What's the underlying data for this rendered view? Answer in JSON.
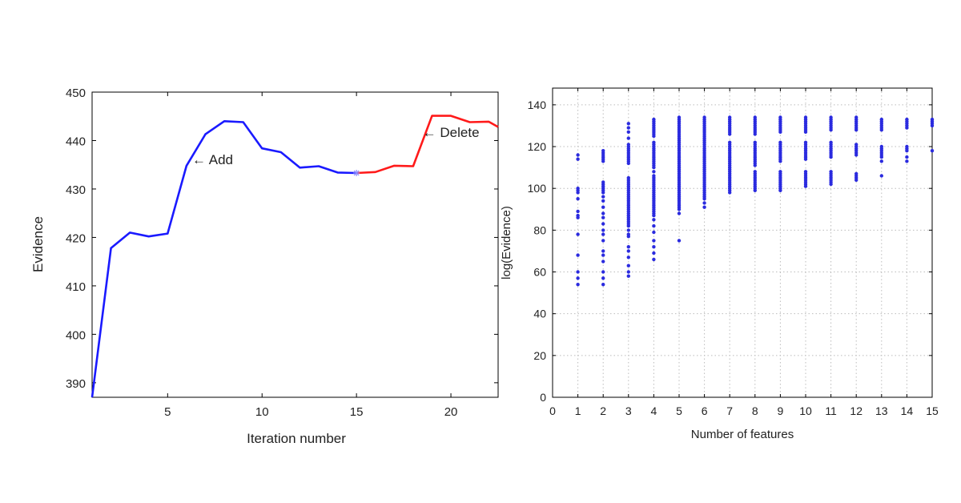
{
  "chart_data": [
    {
      "type": "line",
      "xlabel": "Iteration number",
      "ylabel": "Evidence",
      "xlim": [
        1,
        22.5
      ],
      "ylim": [
        387,
        450
      ],
      "xticks": [
        5,
        10,
        15,
        20
      ],
      "yticks": [
        390,
        400,
        410,
        420,
        430,
        440,
        450
      ],
      "grid": false,
      "series": [
        {
          "color": "#1a1aff",
          "x": [
            1,
            2,
            3,
            4,
            5,
            6,
            7,
            8,
            9,
            10,
            11,
            12,
            13,
            14,
            15
          ],
          "y": [
            387,
            417.8,
            421,
            420.2,
            420.8,
            434.8,
            441.3,
            444,
            443.8,
            438.4,
            437.6,
            434.4,
            434.7,
            433.4,
            433.3
          ]
        },
        {
          "color": "#ff1a1a",
          "x": [
            15,
            16,
            17,
            18,
            19,
            20,
            21,
            22,
            22.5
          ],
          "y": [
            433.3,
            433.5,
            434.8,
            434.7,
            445.1,
            445.1,
            443.8,
            443.9,
            442.8
          ]
        }
      ],
      "marker": {
        "x": 15,
        "y": 433.3,
        "symbol": "*"
      },
      "annotations": [
        {
          "text": "← Add",
          "x": 6.3,
          "y": 435.1
        },
        {
          "text": "← Delete",
          "x": 18.5,
          "y": 440.7
        }
      ]
    },
    {
      "type": "scatter",
      "xlabel": "Number of features",
      "ylabel": "log(Evidence)",
      "xlim": [
        0,
        15
      ],
      "ylim": [
        0,
        148
      ],
      "xticks": [
        0,
        1,
        2,
        3,
        4,
        5,
        6,
        7,
        8,
        9,
        10,
        11,
        12,
        13,
        14,
        15
      ],
      "yticks": [
        0,
        20,
        40,
        60,
        80,
        100,
        120,
        140
      ],
      "grid": true,
      "color": "#2b2bdf",
      "groups": [
        {
          "x": 1,
          "y": [
            116,
            114,
            100,
            99,
            98,
            95,
            89,
            87,
            86,
            78,
            68,
            60,
            57,
            54
          ]
        },
        {
          "x": 2,
          "y": [
            118,
            117,
            116,
            115,
            114,
            113,
            103,
            102,
            101,
            100,
            99,
            98,
            96,
            94,
            91,
            88,
            86,
            83,
            80,
            78,
            75,
            70,
            68,
            65,
            60,
            57,
            54
          ]
        },
        {
          "x": 3,
          "y": [
            131,
            129,
            127,
            124,
            121,
            120,
            119,
            118,
            117,
            116,
            115,
            114,
            113,
            112,
            105,
            104,
            103,
            102,
            101,
            100,
            99,
            98,
            97,
            96,
            95,
            94,
            93,
            92,
            91,
            90,
            89,
            88,
            87,
            86,
            85,
            84,
            83,
            82,
            80,
            78,
            77,
            72,
            70,
            67,
            63,
            60,
            58
          ]
        },
        {
          "x": 4,
          "y": [
            133,
            132,
            131,
            130,
            129,
            128,
            127,
            126,
            125,
            122,
            121,
            120,
            119,
            118,
            117,
            116,
            115,
            114,
            113,
            112,
            111,
            110,
            108,
            106,
            105,
            104,
            103,
            102,
            101,
            100,
            99,
            98,
            97,
            96,
            95,
            94,
            93,
            92,
            91,
            90,
            89,
            88,
            87,
            85,
            82,
            79,
            75,
            72,
            69,
            66
          ]
        },
        {
          "x": 5,
          "y": [
            134,
            133,
            132,
            131,
            130,
            129,
            128,
            127,
            126,
            125,
            124,
            123,
            122,
            121,
            120,
            119,
            118,
            117,
            116,
            115,
            114,
            113,
            112,
            111,
            110,
            109,
            108,
            107,
            106,
            105,
            104,
            103,
            102,
            101,
            100,
            99,
            98,
            97,
            96,
            95,
            94,
            93,
            92,
            91,
            90,
            88,
            75
          ]
        },
        {
          "x": 6,
          "y": [
            134,
            133,
            132,
            131,
            130,
            129,
            128,
            127,
            126,
            125,
            124,
            123,
            122,
            121,
            120,
            119,
            118,
            117,
            116,
            115,
            114,
            113,
            112,
            111,
            110,
            109,
            108,
            107,
            106,
            105,
            104,
            103,
            102,
            101,
            100,
            99,
            98,
            97,
            96,
            95,
            93,
            91
          ]
        },
        {
          "x": 7,
          "y": [
            134,
            133,
            132,
            131,
            130,
            129,
            128,
            127,
            126,
            122,
            121,
            120,
            119,
            118,
            117,
            116,
            115,
            114,
            113,
            112,
            111,
            110,
            109,
            108,
            107,
            106,
            105,
            104,
            103,
            102,
            101,
            100,
            99,
            98
          ]
        },
        {
          "x": 8,
          "y": [
            134,
            133,
            132,
            131,
            130,
            129,
            128,
            127,
            126,
            122,
            121,
            120,
            119,
            118,
            117,
            116,
            115,
            114,
            113,
            112,
            111,
            108,
            107,
            106,
            105,
            104,
            103,
            102,
            101,
            100,
            99
          ]
        },
        {
          "x": 9,
          "y": [
            134,
            133,
            132,
            131,
            130,
            129,
            128,
            127,
            122,
            121,
            120,
            119,
            118,
            117,
            116,
            115,
            114,
            113,
            108,
            107,
            106,
            105,
            104,
            103,
            102,
            101,
            100,
            99
          ]
        },
        {
          "x": 10,
          "y": [
            134,
            133,
            132,
            131,
            130,
            129,
            128,
            127,
            122,
            121,
            120,
            119,
            118,
            117,
            116,
            115,
            114,
            108,
            107,
            106,
            105,
            104,
            103,
            102,
            101
          ]
        },
        {
          "x": 11,
          "y": [
            134,
            133,
            132,
            131,
            130,
            129,
            128,
            122,
            121,
            120,
            119,
            118,
            117,
            116,
            115,
            108,
            107,
            106,
            105,
            104,
            103,
            102
          ]
        },
        {
          "x": 12,
          "y": [
            134,
            133,
            132,
            131,
            130,
            129,
            128,
            121,
            120,
            119,
            118,
            117,
            116,
            107,
            106,
            105,
            104
          ]
        },
        {
          "x": 13,
          "y": [
            133,
            132,
            131,
            130,
            129,
            128,
            120,
            119,
            118,
            117,
            116,
            115,
            113,
            106
          ]
        },
        {
          "x": 14,
          "y": [
            133,
            132,
            131,
            130,
            129,
            120,
            119,
            118,
            115,
            113
          ]
        },
        {
          "x": 15,
          "y": [
            133,
            132,
            131,
            130,
            118
          ]
        }
      ]
    }
  ]
}
